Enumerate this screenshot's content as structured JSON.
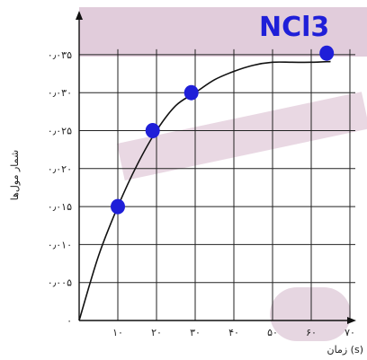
{
  "chart_data": {
    "type": "line",
    "xlabel": "زمان (s)",
    "ylabel": "شمار مول‌ها",
    "xlim": [
      0,
      70
    ],
    "ylim": [
      0,
      0.035
    ],
    "x_ticks": [
      10,
      20,
      30,
      40,
      50,
      60,
      70
    ],
    "x_tick_labels": [
      "۱۰",
      "۲۰",
      "۳۰",
      "۴۰",
      "۵۰",
      "۶۰",
      "۷۰"
    ],
    "y_ticks": [
      0,
      0.005,
      0.01,
      0.015,
      0.02,
      0.025,
      0.03,
      0.035
    ],
    "y_tick_labels": [
      "۰",
      "۰٫۰۰۵",
      "۰٫۰۱۰",
      "۰٫۰۱۵",
      "۰٫۰۲۰",
      "۰٫۰۲۵",
      "۰٫۰۳۰",
      "۰٫۰۳۵"
    ],
    "grid": true,
    "series": [
      {
        "curve_points": [
          [
            0,
            0
          ],
          [
            5,
            0.0085
          ],
          [
            10,
            0.015
          ],
          [
            15,
            0.0205
          ],
          [
            20,
            0.025
          ],
          [
            25,
            0.0283
          ],
          [
            30,
            0.03
          ],
          [
            35,
            0.0317
          ],
          [
            40,
            0.0328
          ],
          [
            45,
            0.0336
          ],
          [
            50,
            0.034
          ],
          [
            55,
            0.034
          ],
          [
            60,
            0.034
          ],
          [
            65,
            0.0341
          ]
        ],
        "marked_points": [
          [
            10,
            0.015
          ],
          [
            19,
            0.025
          ],
          [
            29,
            0.03
          ],
          [
            64,
            0.0352
          ]
        ],
        "line_color": "#111111",
        "marker_color": "#1f1fd8"
      }
    ],
    "annotation": "NCl3"
  },
  "colors": {
    "grid": "#222222",
    "watermark": "#c8a0bb",
    "background": "#ffffff",
    "annotation": "#1f1fd8"
  }
}
